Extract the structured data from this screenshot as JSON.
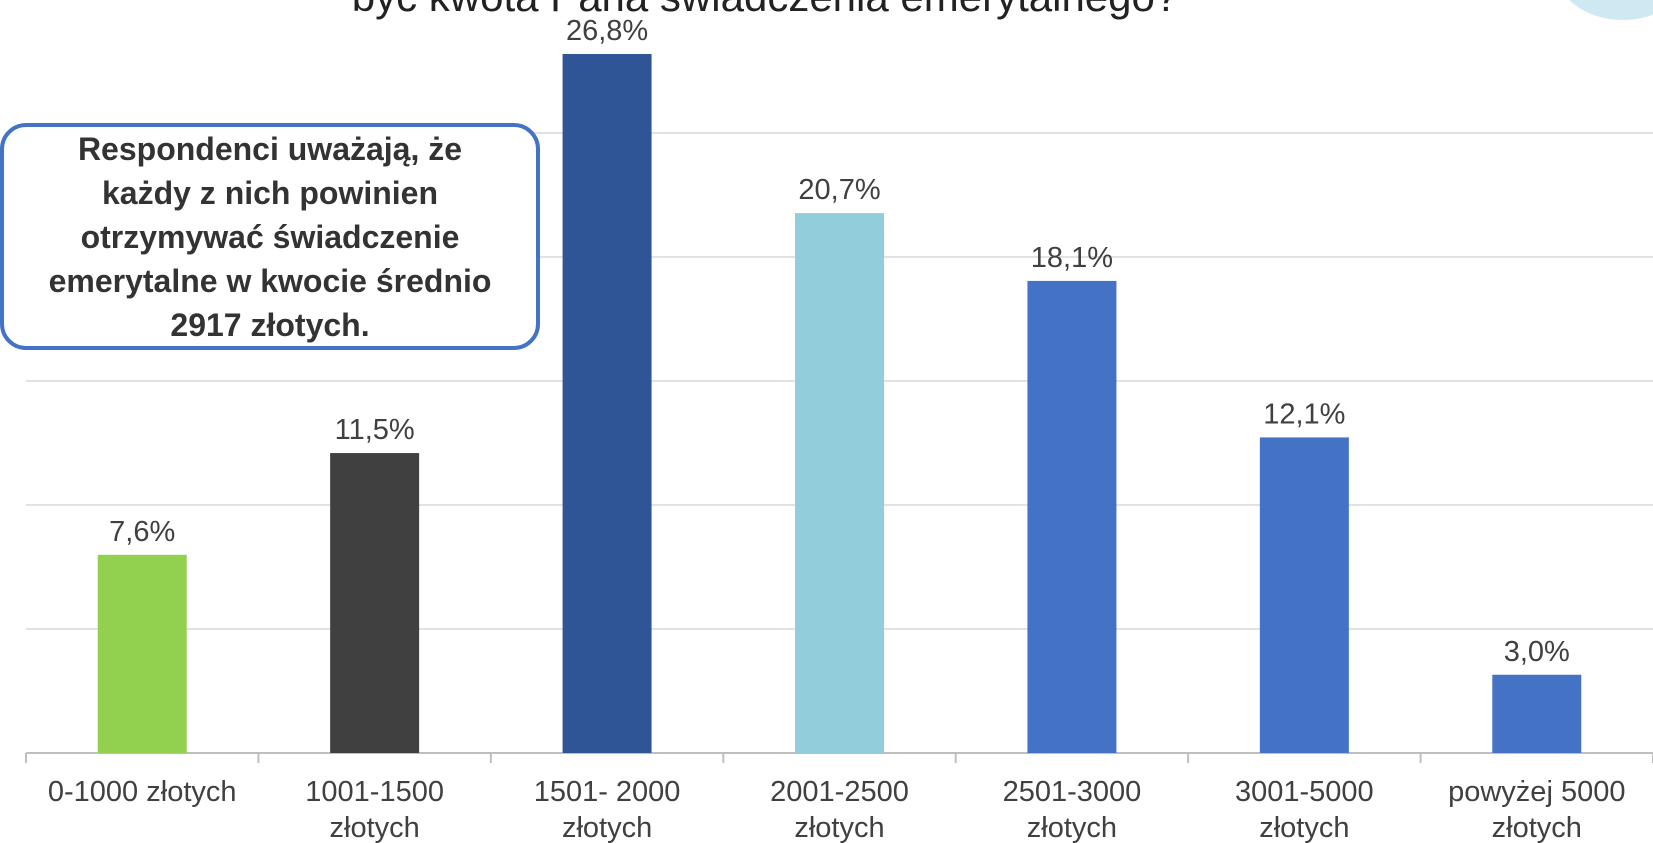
{
  "chart_data": {
    "type": "bar",
    "title": "być kwota Pana świadczenia emerytalnego?",
    "categories": [
      [
        "0-1000 złotych"
      ],
      [
        "1001-1500",
        "złotych"
      ],
      [
        "1501- 2000",
        "złotych"
      ],
      [
        "2001-2500",
        "złotych"
      ],
      [
        "2501-3000",
        "złotych"
      ],
      [
        "3001-5000",
        "złotych"
      ],
      [
        "powyżej 5000",
        "złotych"
      ]
    ],
    "values": [
      7.6,
      11.5,
      26.8,
      20.7,
      18.1,
      12.1,
      3.0
    ],
    "data_labels": [
      "7,6%",
      "11,5%",
      "26,8%",
      "20,7%",
      "18,1%",
      "12,1%",
      "3,0%"
    ],
    "colors": [
      "#92d050",
      "#404040",
      "#2f5597",
      "#92cddc",
      "#4472c4",
      "#4472c4",
      "#4472c4"
    ],
    "ylim": [
      0,
      27
    ],
    "grid": true,
    "gridline_color": "#d9d9d9"
  },
  "callout": {
    "text_lines": [
      "Respondenci uważają, że",
      "każdy z nich powinien",
      "otrzymywać świadczenie",
      "emerytalne w kwocie średnio",
      "2917 złotych."
    ]
  }
}
